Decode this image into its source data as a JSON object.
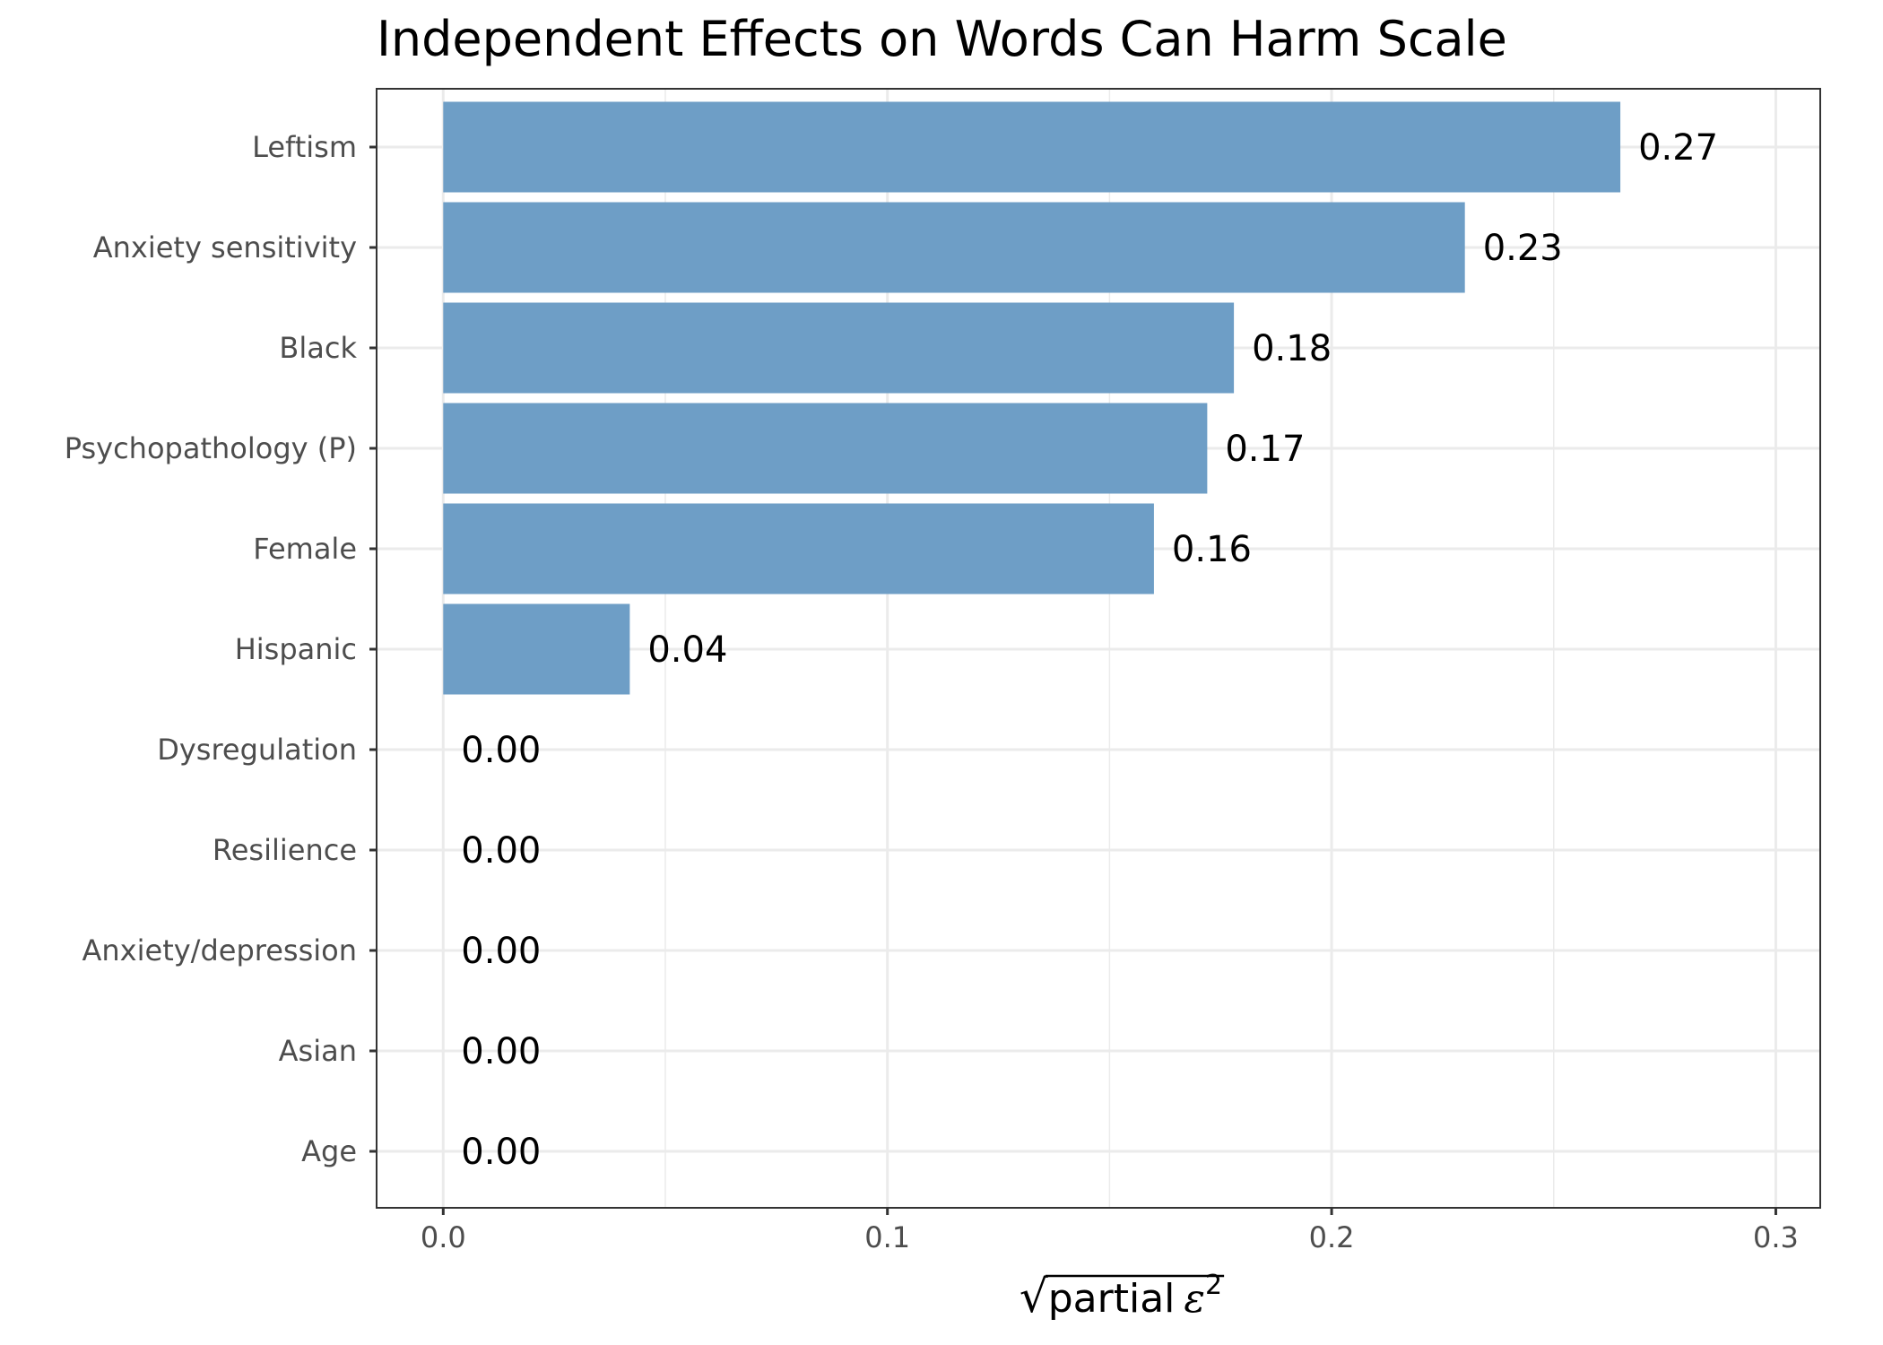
{
  "chart_data": {
    "type": "bar",
    "orientation": "horizontal",
    "title": "Independent Effects on Words Can Harm Scale",
    "xlabel": {
      "radical": "√",
      "text": "partial",
      "symbol": "ε",
      "superscript": "2"
    },
    "ylabel": "",
    "categories": [
      "Leftism",
      "Anxiety sensitivity",
      "Black",
      "Psychopathology (P)",
      "Female",
      "Hispanic",
      "Dysregulation",
      "Resilience",
      "Anxiety/depression",
      "Asian",
      "Age"
    ],
    "values": [
      0.265,
      0.23,
      0.178,
      0.172,
      0.16,
      0.042,
      0.0,
      0.0,
      0.0,
      0.0,
      0.0
    ],
    "value_labels": [
      "0.27",
      "0.23",
      "0.18",
      "0.17",
      "0.16",
      "0.04",
      "0.00",
      "0.00",
      "0.00",
      "0.00",
      "0.00"
    ],
    "xlim": [
      -0.015,
      0.31
    ],
    "xticks": [
      0.0,
      0.1,
      0.2,
      0.3
    ],
    "xtick_labels": [
      "0.0",
      "0.1",
      "0.2",
      "0.3"
    ],
    "grid": true,
    "legend": "none",
    "bar_color": "#6e9ec6",
    "panel_border_color": "#333333",
    "grid_color": "#ebebeb"
  }
}
